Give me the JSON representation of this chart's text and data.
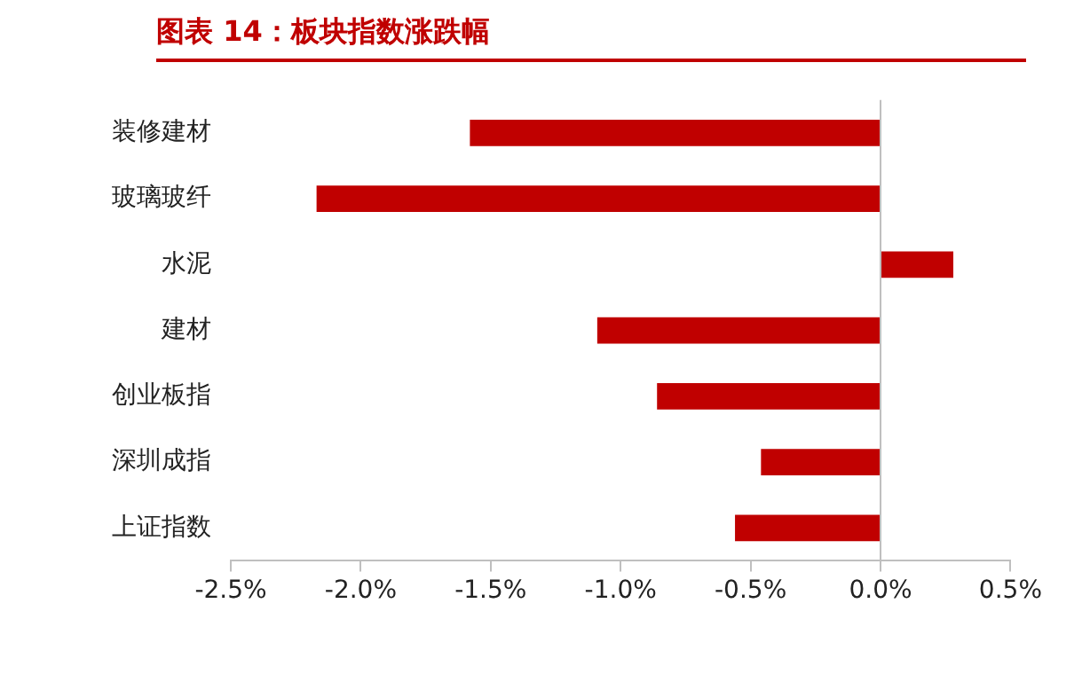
{
  "chart_data": {
    "type": "bar",
    "orientation": "horizontal",
    "title": "图表 14：板块指数涨跌幅",
    "categories": [
      "装修建材",
      "玻璃玻纤",
      "水泥",
      "建材",
      "创业板指",
      "深圳成指",
      "上证指数"
    ],
    "values": [
      -1.58,
      -2.17,
      0.28,
      -1.09,
      -0.86,
      -0.46,
      -0.56
    ],
    "color": "#c00000",
    "xlim": [
      -2.5,
      0.5
    ],
    "xticks": [
      {
        "value": -2.5,
        "label": "-2.5%"
      },
      {
        "value": -2,
        "label": "-2.0%"
      },
      {
        "value": -1.5,
        "label": "-1.5%"
      },
      {
        "value": -1,
        "label": "-1.0%"
      },
      {
        "value": -0.5,
        "label": "-0.5%"
      },
      {
        "value": 0,
        "label": "0.0%"
      },
      {
        "value": 0.5,
        "label": "0.5%"
      }
    ],
    "ref_lines": [
      {
        "axis": "x",
        "value": 0,
        "color": "#bfbfbf"
      }
    ],
    "grid": false,
    "legend": false
  }
}
